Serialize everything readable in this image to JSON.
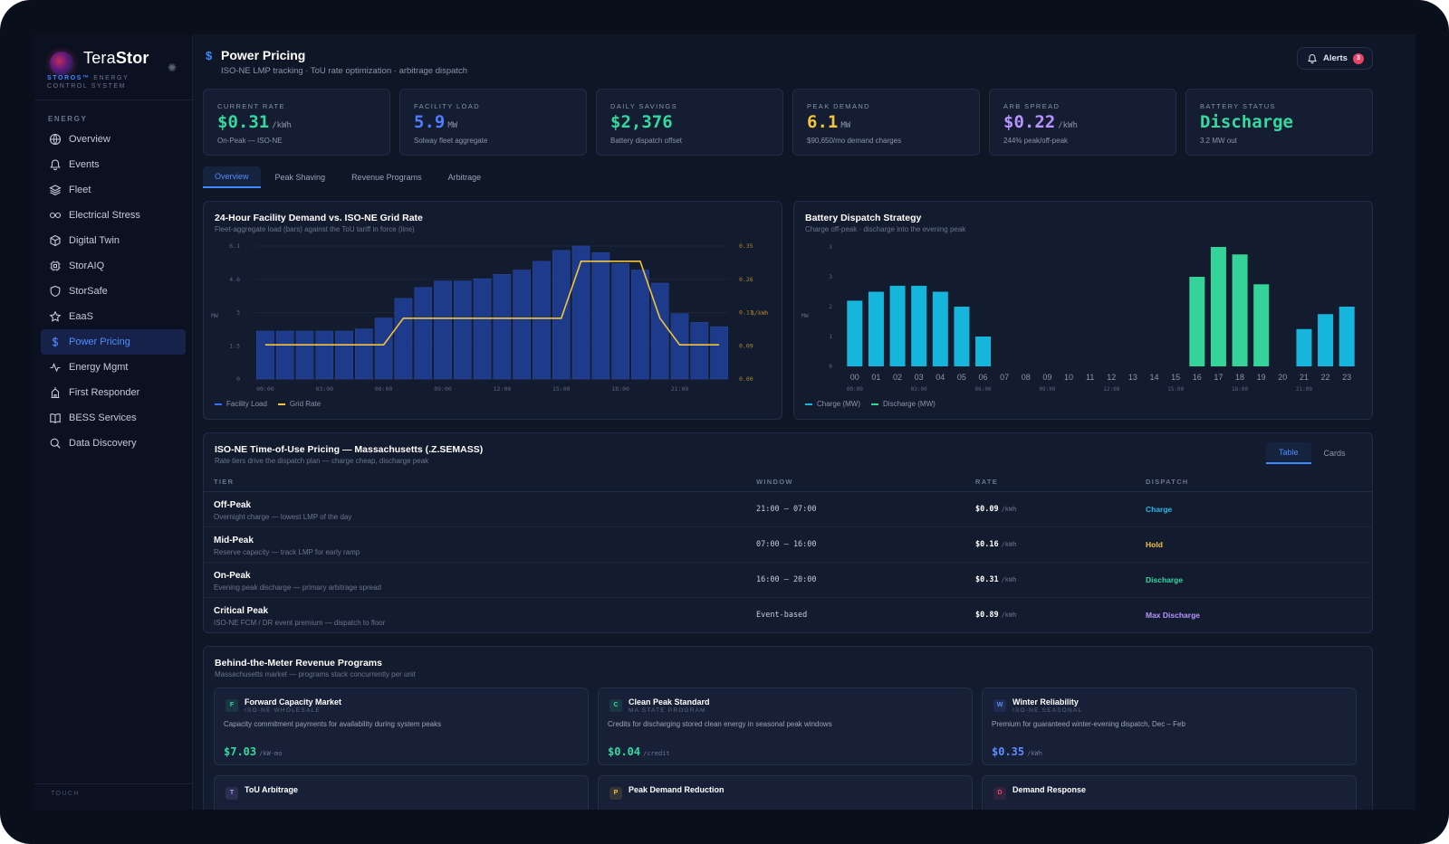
{
  "brand": {
    "name_light": "Tera",
    "name_bold": "Stor",
    "sub_os": "STOROS™",
    "sub_rest": "ENERGY CONTROL SYSTEM"
  },
  "sidebar": {
    "section_label": "ENERGY",
    "items": [
      {
        "label": "Overview",
        "icon": "globe-icon"
      },
      {
        "label": "Events",
        "icon": "bell-icon"
      },
      {
        "label": "Fleet",
        "icon": "layers-icon"
      },
      {
        "label": "Electrical Stress",
        "icon": "link-icon"
      },
      {
        "label": "Digital Twin",
        "icon": "cube-icon"
      },
      {
        "label": "StorAIQ",
        "icon": "chip-icon"
      },
      {
        "label": "StorSafe",
        "icon": "shield-icon"
      },
      {
        "label": "EaaS",
        "icon": "star-icon"
      },
      {
        "label": "Power Pricing",
        "icon": "dollar-icon",
        "active": true
      },
      {
        "label": "Energy Mgmt",
        "icon": "pulse-icon"
      },
      {
        "label": "First Responder",
        "icon": "building-icon"
      },
      {
        "label": "BESS Services",
        "icon": "book-icon"
      },
      {
        "label": "Data Discovery",
        "icon": "search-icon"
      }
    ],
    "footer_label": "TOUCH"
  },
  "header": {
    "title": "Power Pricing",
    "subtitle": "ISO-NE LMP tracking · ToU rate optimization · arbitrage dispatch",
    "alerts_label": "Alerts",
    "alerts_count": "3"
  },
  "kpis": [
    {
      "label": "CURRENT RATE",
      "value": "$0.31",
      "unit": "/kWh",
      "note": "On-Peak — ISO-NE",
      "color": "#34d9a0"
    },
    {
      "label": "FACILITY LOAD",
      "value": "5.9",
      "unit": "MW",
      "note": "Solway fleet aggregate",
      "color": "#4f7dff"
    },
    {
      "label": "DAILY SAVINGS",
      "value": "$2,376",
      "unit": "",
      "note": "Battery dispatch offset",
      "color": "#34d9a0"
    },
    {
      "label": "PEAK DEMAND",
      "value": "6.1",
      "unit": "MW",
      "note": "$90,650/mo demand charges",
      "color": "#f2c53d"
    },
    {
      "label": "ARB SPREAD",
      "value": "$0.22",
      "unit": "/kWh",
      "note": "244% peak/off-peak",
      "color": "#b794ff"
    },
    {
      "label": "BATTERY STATUS",
      "value": "Discharge",
      "unit": "",
      "note": "3.2 MW out",
      "color": "#34d9a0"
    }
  ],
  "tabs": [
    "Overview",
    "Peak Shaving",
    "Revenue Programs",
    "Arbitrage"
  ],
  "chart_demand": {
    "title": "24-Hour Facility Demand vs. ISO-NE Grid Rate",
    "subtitle": "Fleet-aggregate load (bars) against the ToU tariff in force (line)",
    "chart_data": {
      "type": "bar",
      "x": [
        "00:00",
        "01:00",
        "02:00",
        "03:00",
        "04:00",
        "05:00",
        "06:00",
        "07:00",
        "08:00",
        "09:00",
        "10:00",
        "11:00",
        "12:00",
        "13:00",
        "14:00",
        "15:00",
        "16:00",
        "17:00",
        "18:00",
        "19:00",
        "20:00",
        "21:00",
        "22:00",
        "23:00"
      ],
      "xtick_labels": [
        "00:00",
        "03:00",
        "06:00",
        "09:00",
        "12:00",
        "15:00",
        "18:00",
        "21:00"
      ],
      "y_left_ticks": [
        "6.1",
        "4.6",
        "3",
        "1.5",
        "0"
      ],
      "y_right_ticks": [
        "0.35",
        "0.26",
        "0.17",
        "0.09",
        "0.00"
      ],
      "ylabel": "MW",
      "y2label": "$/kWh",
      "ylim": [
        0,
        6.1
      ],
      "y2lim": [
        0,
        0.35
      ],
      "series": [
        {
          "name": "Facility Load",
          "type": "bar",
          "color": "#1e3a8a",
          "values": [
            2.2,
            2.2,
            2.2,
            2.2,
            2.2,
            2.3,
            2.8,
            3.7,
            4.2,
            4.5,
            4.5,
            4.6,
            4.8,
            5.0,
            5.4,
            5.9,
            6.1,
            5.8,
            5.3,
            5.0,
            4.4,
            3.0,
            2.6,
            2.4
          ]
        },
        {
          "name": "Grid Rate",
          "type": "line",
          "color": "#f2c53d",
          "values": [
            0.09,
            0.09,
            0.09,
            0.09,
            0.09,
            0.09,
            0.09,
            0.16,
            0.16,
            0.16,
            0.16,
            0.16,
            0.16,
            0.16,
            0.16,
            0.16,
            0.31,
            0.31,
            0.31,
            0.31,
            0.16,
            0.09,
            0.09,
            0.09
          ]
        }
      ],
      "legend": "bottom-left"
    }
  },
  "chart_dispatch": {
    "title": "Battery Dispatch Strategy",
    "subtitle": "Charge off-peak · discharge into the evening peak",
    "chart_data": {
      "type": "bar",
      "categories": [
        "00",
        "01",
        "02",
        "03",
        "04",
        "05",
        "06",
        "07",
        "08",
        "09",
        "10",
        "11",
        "12",
        "13",
        "14",
        "15",
        "16",
        "17",
        "18",
        "19",
        "20",
        "21",
        "22",
        "23"
      ],
      "xtick_labels": [
        "00:00",
        "03:00",
        "06:00",
        "09:00",
        "12:00",
        "15:00",
        "18:00",
        "21:00"
      ],
      "y_ticks": [
        "3",
        "3",
        "2",
        "1",
        "0"
      ],
      "ylabel": "MW",
      "ylim": [
        0,
        4
      ],
      "series": [
        {
          "name": "Charge (MW)",
          "color": "#16b5dc",
          "values": [
            2.2,
            2.5,
            2.7,
            2.7,
            2.5,
            2.0,
            1.0,
            0,
            0,
            0,
            0,
            0,
            0,
            0,
            0,
            0,
            0,
            0,
            0,
            0,
            0,
            1.25,
            1.75,
            2.0
          ]
        },
        {
          "name": "Discharge (MW)",
          "color": "#34d39a",
          "values": [
            0,
            0,
            0,
            0,
            0,
            0,
            0,
            0,
            0,
            0,
            0,
            0,
            0,
            0,
            0,
            0,
            3.0,
            4.0,
            3.75,
            2.75,
            0,
            0,
            0,
            0
          ]
        }
      ],
      "legend": "bottom-left"
    }
  },
  "tou_table": {
    "title": "ISO-NE Time-of-Use Pricing — Massachusetts (.Z.SEMASS)",
    "subtitle": "Rate tiers drive the dispatch plan — charge cheap, discharge peak",
    "toggle": [
      "Table",
      "Cards"
    ],
    "headers": [
      "TIER",
      "WINDOW",
      "RATE",
      "DISPATCH"
    ],
    "rows": [
      {
        "tier": "Off-Peak",
        "desc": "Overnight charge — lowest LMP of the day",
        "window": "21:00 – 07:00",
        "rate": "$0.09",
        "unit": "/kWh",
        "dispatch": "Charge",
        "color": "#22b8e6"
      },
      {
        "tier": "Mid-Peak",
        "desc": "Reserve capacity — track LMP for early ramp",
        "window": "07:00 – 16:00",
        "rate": "$0.16",
        "unit": "/kWh",
        "dispatch": "Hold",
        "color": "#f2c53d"
      },
      {
        "tier": "On-Peak",
        "desc": "Evening peak discharge — primary arbitrage spread",
        "window": "16:00 – 20:00",
        "rate": "$0.31",
        "unit": "/kWh",
        "dispatch": "Discharge",
        "color": "#34d9a0"
      },
      {
        "tier": "Critical Peak",
        "desc": "ISO-NE FCM / DR event premium — dispatch to floor",
        "window": "Event-based",
        "rate": "$0.89",
        "unit": "/kWh",
        "dispatch": "Max Discharge",
        "color": "#b794ff"
      }
    ]
  },
  "revenue": {
    "title": "Behind-the-Meter Revenue Programs",
    "subtitle": "Massachusetts market — programs stack concurrently per unit",
    "programs": [
      {
        "letter": "F",
        "name": "Forward Capacity Market",
        "tag": "ISO-NE WHOLESALE",
        "desc": "Capacity commitment payments for availability during system peaks",
        "value": "$7.03",
        "unit": "/kW·mo",
        "color": "#34d9a0"
      },
      {
        "letter": "C",
        "name": "Clean Peak Standard",
        "tag": "MA STATE PROGRAM",
        "desc": "Credits for discharging stored clean energy in seasonal peak windows",
        "value": "$0.04",
        "unit": "/credit",
        "color": "#34d9a0"
      },
      {
        "letter": "W",
        "name": "Winter Reliability",
        "tag": "ISO-NE SEASONAL",
        "desc": "Premium for guaranteed winter-evening dispatch, Dec – Feb",
        "value": "$0.35",
        "unit": "/kWh",
        "color": "#5b8dff"
      },
      {
        "letter": "T",
        "name": "ToU Arbitrage",
        "tag": "",
        "desc": "",
        "value": "",
        "unit": "",
        "color": "#b794ff"
      },
      {
        "letter": "P",
        "name": "Peak Demand Reduction",
        "tag": "",
        "desc": "",
        "value": "",
        "unit": "",
        "color": "#f2c53d"
      },
      {
        "letter": "D",
        "name": "Demand Response",
        "tag": "",
        "desc": "",
        "value": "",
        "unit": "",
        "color": "#e9456a"
      }
    ]
  }
}
